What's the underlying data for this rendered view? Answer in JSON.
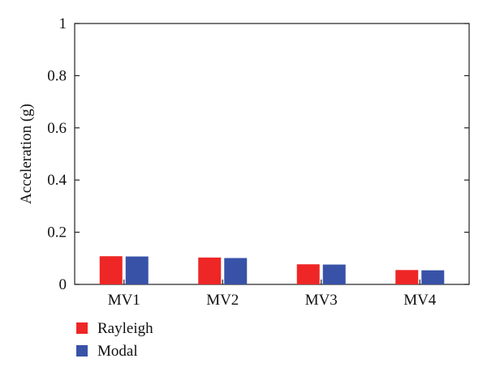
{
  "chart_data": {
    "type": "bar",
    "title": "",
    "xlabel": "",
    "ylabel": "Acceleration (g)",
    "categories": [
      "MV1",
      "MV2",
      "MV3",
      "MV4"
    ],
    "series": [
      {
        "name": "Rayleigh",
        "values": [
          0.108,
          0.103,
          0.077,
          0.055
        ],
        "color": "#ee2626"
      },
      {
        "name": "Modal",
        "values": [
          0.107,
          0.101,
          0.076,
          0.054
        ],
        "color": "#3852a8"
      }
    ],
    "ylim": [
      0,
      1
    ],
    "yticks": [
      {
        "value": 0,
        "label": "0"
      },
      {
        "value": 0.2,
        "label": "0.2"
      },
      {
        "value": 0.4,
        "label": "0.4"
      },
      {
        "value": 0.6,
        "label": "0.6"
      },
      {
        "value": 0.8,
        "label": "0.8"
      },
      {
        "value": 1,
        "label": "1"
      }
    ],
    "grid": false,
    "legend_position": "bottom-left"
  }
}
